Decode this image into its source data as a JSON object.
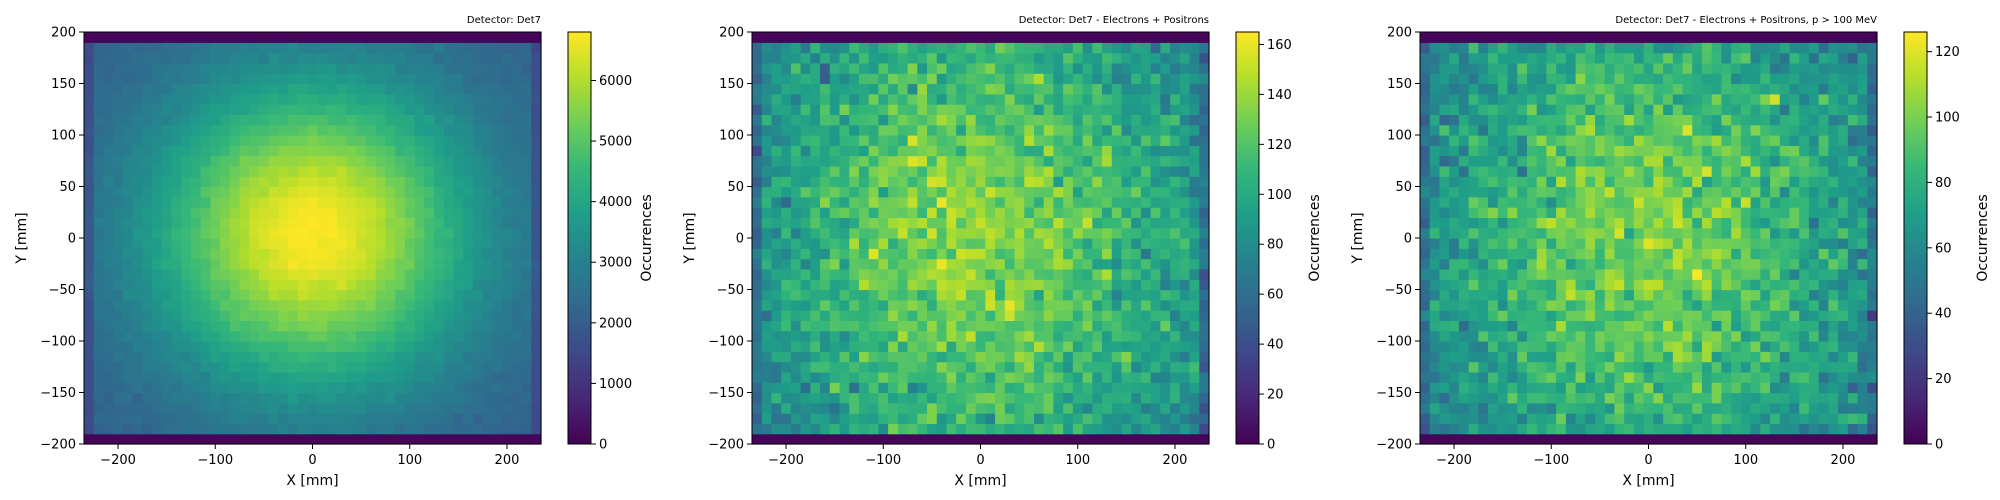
{
  "chart_data": [
    {
      "type": "heatmap",
      "title": "Detector: Det7",
      "xlabel": "X [mm]",
      "ylabel": "Y [mm]",
      "colorbar_label": "Occurrences",
      "colormap": "viridis",
      "xlim": [
        -235,
        235
      ],
      "ylim": [
        -200,
        200
      ],
      "xticks": [
        -200,
        -100,
        0,
        100,
        200
      ],
      "yticks": [
        -200,
        -150,
        -100,
        -50,
        0,
        50,
        100,
        150,
        200
      ],
      "bins_x": 47,
      "bins_y": 40,
      "color_range": [
        0,
        6800
      ],
      "colorbar_ticks": [
        0,
        1000,
        2000,
        3000,
        4000,
        5000,
        6000
      ],
      "distribution": "gaussian centered near (0, 0), peak ≈ 6800, edge ≈ 2000",
      "grid": false
    },
    {
      "type": "heatmap",
      "title": "Detector: Det7 - Electrons + Positrons",
      "xlabel": "X [mm]",
      "ylabel": "Y [mm]",
      "colorbar_label": "Occurrences",
      "colormap": "viridis",
      "xlim": [
        -235,
        235
      ],
      "ylim": [
        -200,
        200
      ],
      "xticks": [
        -200,
        -100,
        0,
        100,
        200
      ],
      "yticks": [
        -200,
        -150,
        -100,
        -50,
        0,
        50,
        100,
        150,
        200
      ],
      "bins_x": 47,
      "bins_y": 40,
      "color_range": [
        0,
        165
      ],
      "colorbar_ticks": [
        0,
        20,
        40,
        60,
        80,
        100,
        120,
        140,
        160
      ],
      "distribution": "broad noisy plateau, center ≈ 130, edges ≈ 60",
      "grid": false
    },
    {
      "type": "heatmap",
      "title": "Detector: Det7 - Electrons + Positrons, p > 100 MeV",
      "xlabel": "X [mm]",
      "ylabel": "Y [mm]",
      "colorbar_label": "Occurrences",
      "colormap": "viridis",
      "xlim": [
        -235,
        235
      ],
      "ylim": [
        -200,
        200
      ],
      "xticks": [
        -200,
        -100,
        0,
        100,
        200
      ],
      "yticks": [
        -200,
        -150,
        -100,
        -50,
        0,
        50,
        100,
        150,
        200
      ],
      "bins_x": 47,
      "bins_y": 40,
      "color_range": [
        0,
        126
      ],
      "colorbar_ticks": [
        0,
        20,
        40,
        60,
        80,
        100,
        120
      ],
      "distribution": "broad noisy plateau, center ≈ 95, edges ≈ 45",
      "grid": false
    }
  ]
}
